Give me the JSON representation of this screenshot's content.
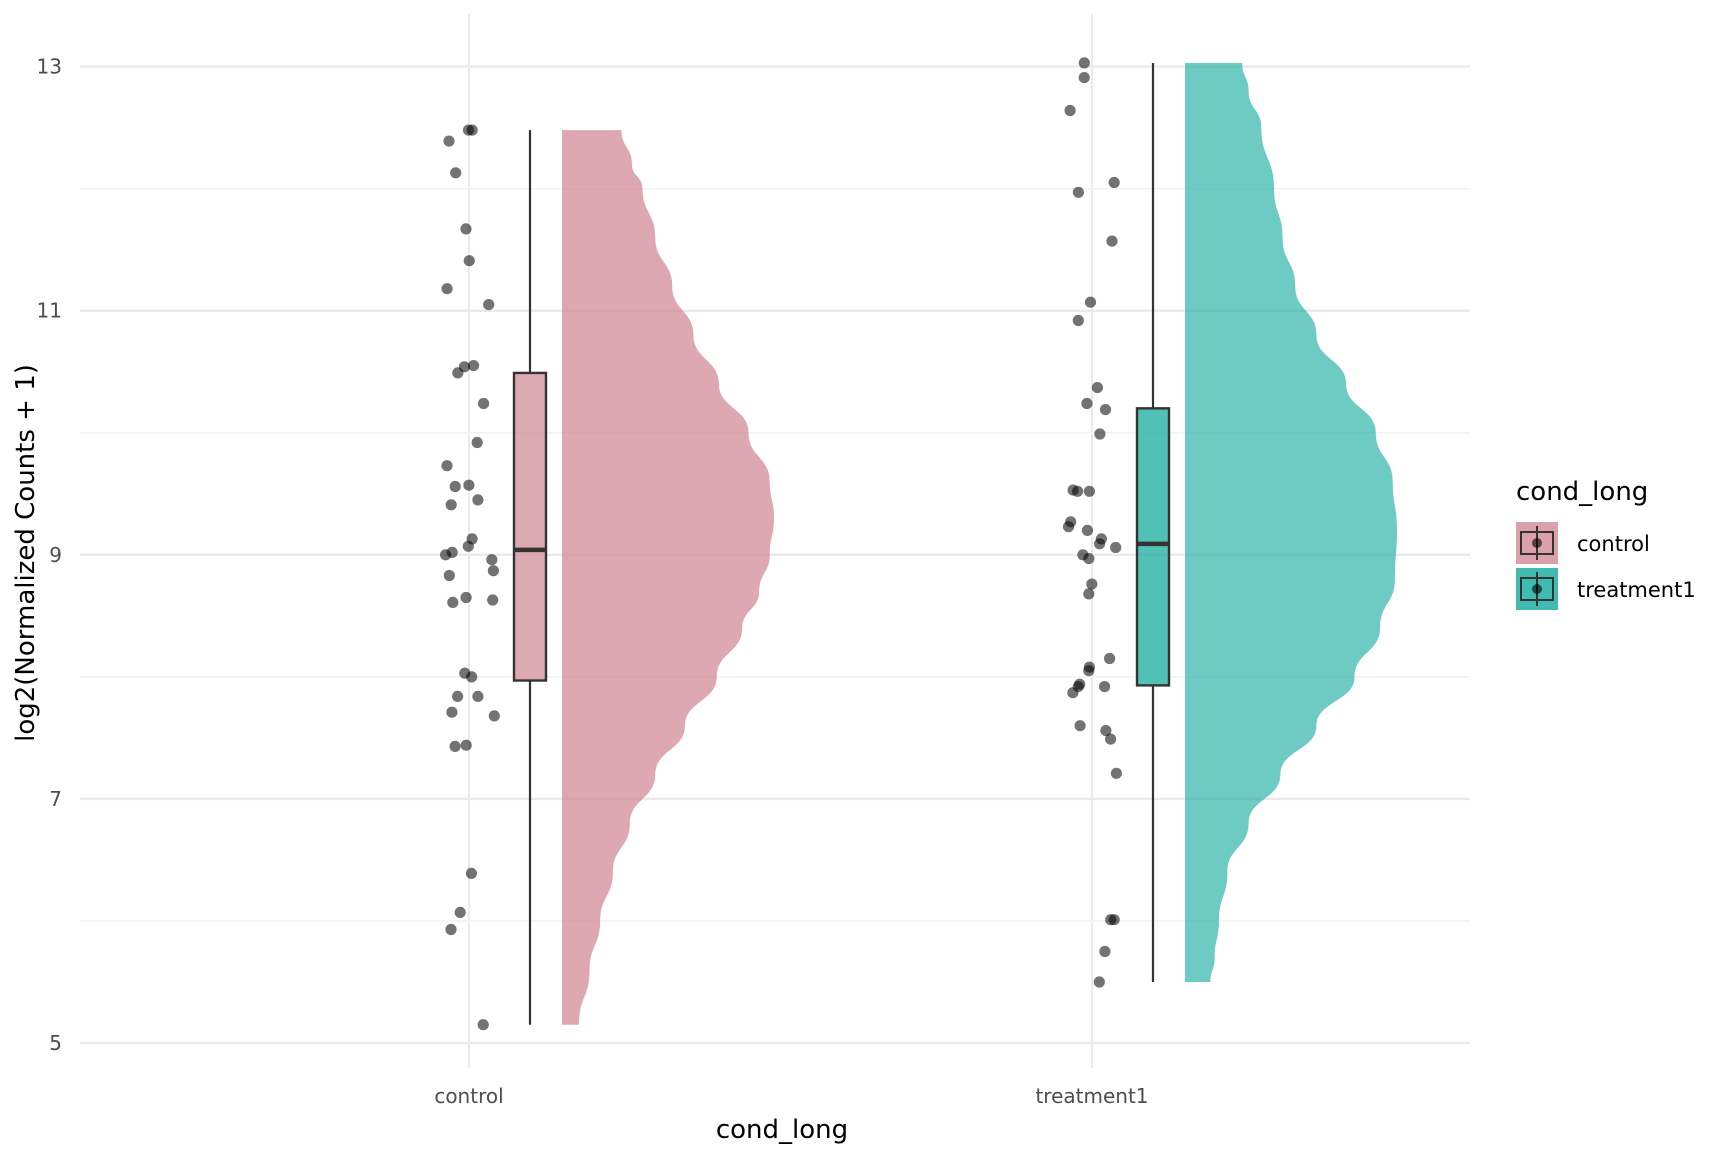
{
  "chart_data": {
    "type": "raincloud",
    "title": "",
    "xlabel": "cond_long",
    "ylabel": "log2(Normalized Counts + 1)",
    "ylim": [
      4.85,
      13.4
    ],
    "y_ticks": [
      5,
      7,
      9,
      11,
      13
    ],
    "y_minor_ticks": [
      6,
      8,
      10,
      12
    ],
    "categories": [
      "control",
      "treatment1"
    ],
    "legend": {
      "title": "cond_long",
      "position": "right",
      "entries": [
        {
          "label": "control",
          "color": "#D4919E"
        },
        {
          "label": "treatment1",
          "color": "#20AFA4"
        }
      ]
    },
    "series": [
      {
        "name": "control",
        "fill_color": "#CC7A8A",
        "box_color": "#D4919E",
        "box": {
          "min": 5.15,
          "q1": 7.97,
          "median": 9.04,
          "q3": 10.49,
          "max": 12.48
        },
        "density": [
          [
            12.48,
            0.28
          ],
          [
            12.2,
            0.33
          ],
          [
            12.0,
            0.38
          ],
          [
            11.6,
            0.44
          ],
          [
            11.2,
            0.52
          ],
          [
            10.8,
            0.62
          ],
          [
            10.4,
            0.74
          ],
          [
            10.0,
            0.88
          ],
          [
            9.6,
            0.98
          ],
          [
            9.3,
            1.0
          ],
          [
            9.0,
            0.98
          ],
          [
            8.7,
            0.93
          ],
          [
            8.4,
            0.85
          ],
          [
            8.0,
            0.73
          ],
          [
            7.6,
            0.58
          ],
          [
            7.2,
            0.44
          ],
          [
            6.8,
            0.32
          ],
          [
            6.4,
            0.24
          ],
          [
            6.0,
            0.18
          ],
          [
            5.6,
            0.13
          ],
          [
            5.15,
            0.08
          ]
        ],
        "points": [
          12.48,
          12.48,
          12.39,
          12.13,
          11.67,
          11.41,
          11.18,
          11.05,
          10.55,
          10.54,
          10.49,
          10.24,
          9.92,
          9.73,
          9.57,
          9.56,
          9.45,
          9.41,
          9.13,
          9.07,
          9.02,
          9.0,
          8.96,
          8.87,
          8.83,
          8.65,
          8.63,
          8.61,
          8.03,
          8.0,
          7.84,
          7.84,
          7.71,
          7.68,
          7.44,
          7.43,
          6.39,
          6.07,
          5.93,
          5.15
        ]
      },
      {
        "name": "treatment1",
        "fill_color": "#20AFA4",
        "box_color": "#20AFA4",
        "box": {
          "min": 5.5,
          "q1": 7.93,
          "median": 9.09,
          "q3": 10.2,
          "max": 13.03
        },
        "density": [
          [
            13.03,
            0.27
          ],
          [
            12.8,
            0.3
          ],
          [
            12.5,
            0.36
          ],
          [
            12.0,
            0.42
          ],
          [
            11.6,
            0.46
          ],
          [
            11.2,
            0.52
          ],
          [
            10.8,
            0.62
          ],
          [
            10.4,
            0.76
          ],
          [
            10.0,
            0.9
          ],
          [
            9.6,
            0.98
          ],
          [
            9.2,
            1.0
          ],
          [
            8.8,
            0.99
          ],
          [
            8.4,
            0.92
          ],
          [
            8.0,
            0.8
          ],
          [
            7.6,
            0.62
          ],
          [
            7.2,
            0.45
          ],
          [
            6.8,
            0.3
          ],
          [
            6.4,
            0.2
          ],
          [
            6.0,
            0.16
          ],
          [
            5.7,
            0.14
          ],
          [
            5.5,
            0.12
          ]
        ],
        "points": [
          13.03,
          12.91,
          12.64,
          12.05,
          11.97,
          11.57,
          11.07,
          10.92,
          10.37,
          10.24,
          10.19,
          9.99,
          9.53,
          9.52,
          9.52,
          9.27,
          9.23,
          9.2,
          9.13,
          9.09,
          9.06,
          9.0,
          8.97,
          8.76,
          8.68,
          8.15,
          8.08,
          8.05,
          7.94,
          7.92,
          7.92,
          7.87,
          7.6,
          7.56,
          7.49,
          7.21,
          6.01,
          6.01,
          5.75,
          5.5
        ]
      }
    ]
  }
}
